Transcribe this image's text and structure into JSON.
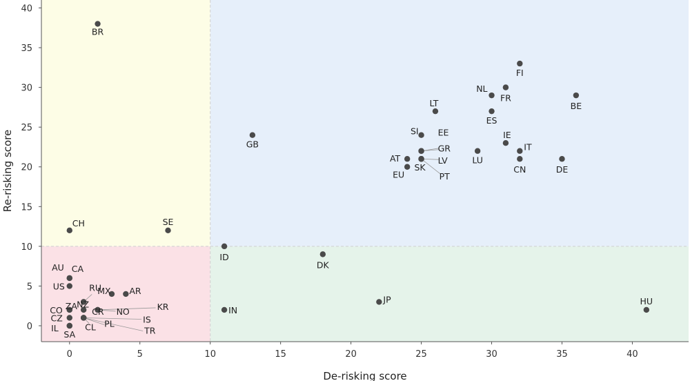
{
  "chart_data": {
    "type": "scatter",
    "xlabel": "De-risking score",
    "ylabel": "Re-risking score",
    "xlim": [
      -2,
      44
    ],
    "ylim": [
      -2,
      41
    ],
    "xticks": [
      0,
      5,
      10,
      15,
      20,
      25,
      30,
      35,
      40
    ],
    "yticks": [
      0,
      5,
      10,
      15,
      20,
      25,
      30,
      35,
      40
    ],
    "grid": false,
    "threshold": {
      "x": 10,
      "y": 10
    },
    "quadrant_colors": {
      "top_left": "#fdfde6",
      "top_right": "#e6effa",
      "bottom_left": "#fbe1e6",
      "bottom_right": "#e5f3ea"
    },
    "point_color": "#4a4a4a",
    "points": [
      {
        "label": "BR",
        "x": 2,
        "y": 38
      },
      {
        "label": "CH",
        "x": 0,
        "y": 12
      },
      {
        "label": "SE",
        "x": 7,
        "y": 12
      },
      {
        "label": "GB",
        "x": 13,
        "y": 24
      },
      {
        "label": "FI",
        "x": 32,
        "y": 33
      },
      {
        "label": "NL",
        "x": 30,
        "y": 29
      },
      {
        "label": "FR",
        "x": 31,
        "y": 30
      },
      {
        "label": "BE",
        "x": 36,
        "y": 29
      },
      {
        "label": "LT",
        "x": 26,
        "y": 27
      },
      {
        "label": "ES",
        "x": 30,
        "y": 27
      },
      {
        "label": "SI",
        "x": 25,
        "y": 24
      },
      {
        "label": "EE",
        "x": 25,
        "y": 22
      },
      {
        "label": "GR",
        "x": 25,
        "y": 22
      },
      {
        "label": "AT",
        "x": 24,
        "y": 21
      },
      {
        "label": "LV",
        "x": 25,
        "y": 21
      },
      {
        "label": "EU",
        "x": 24,
        "y": 20
      },
      {
        "label": "SK",
        "x": 25,
        "y": 21
      },
      {
        "label": "PT",
        "x": 25,
        "y": 21
      },
      {
        "label": "LU",
        "x": 29,
        "y": 22
      },
      {
        "label": "IE",
        "x": 31,
        "y": 23
      },
      {
        "label": "IT",
        "x": 32,
        "y": 22
      },
      {
        "label": "CN",
        "x": 32,
        "y": 21
      },
      {
        "label": "DE",
        "x": 35,
        "y": 21
      },
      {
        "label": "ID",
        "x": 11,
        "y": 10
      },
      {
        "label": "DK",
        "x": 18,
        "y": 9
      },
      {
        "label": "IN",
        "x": 11,
        "y": 2
      },
      {
        "label": "JP",
        "x": 22,
        "y": 3
      },
      {
        "label": "HU",
        "x": 41,
        "y": 2
      },
      {
        "label": "AU",
        "x": 0,
        "y": 6
      },
      {
        "label": "CA",
        "x": 0,
        "y": 6
      },
      {
        "label": "US",
        "x": 0,
        "y": 5
      },
      {
        "label": "RU",
        "x": 1,
        "y": 3
      },
      {
        "label": "MX",
        "x": 3,
        "y": 4
      },
      {
        "label": "AR",
        "x": 4,
        "y": 4
      },
      {
        "label": "NZ",
        "x": 1,
        "y": 3
      },
      {
        "label": "ZA",
        "x": 0,
        "y": 2
      },
      {
        "label": "CR",
        "x": 1,
        "y": 2
      },
      {
        "label": "CO",
        "x": 0,
        "y": 2
      },
      {
        "label": "NO",
        "x": 2,
        "y": 2
      },
      {
        "label": "KR",
        "x": 2,
        "y": 2
      },
      {
        "label": "CZ",
        "x": 0,
        "y": 1
      },
      {
        "label": "IS",
        "x": 1,
        "y": 1
      },
      {
        "label": "IL",
        "x": 0,
        "y": 0
      },
      {
        "label": "SA",
        "x": 0,
        "y": 0
      },
      {
        "label": "CL",
        "x": 1,
        "y": 1
      },
      {
        "label": "PL",
        "x": 1,
        "y": 1
      },
      {
        "label": "TR",
        "x": 1,
        "y": 1
      }
    ]
  }
}
